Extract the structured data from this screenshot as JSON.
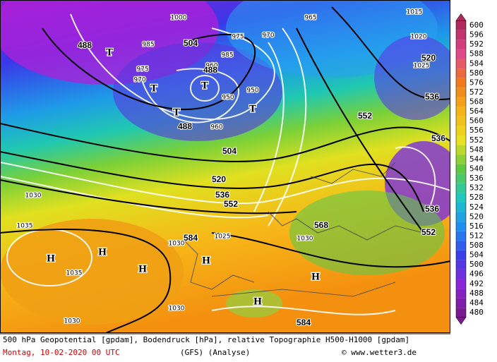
{
  "legend": {
    "values": [
      600,
      596,
      592,
      588,
      584,
      580,
      576,
      572,
      568,
      564,
      560,
      556,
      552,
      548,
      544,
      540,
      536,
      532,
      528,
      524,
      520,
      516,
      512,
      508,
      504,
      500,
      496,
      492,
      488,
      484,
      480
    ]
  },
  "map": {
    "height_labels": [
      "488",
      "504",
      "488",
      "488",
      "504",
      "520",
      "536",
      "552",
      "552",
      "520",
      "536",
      "536",
      "536",
      "552",
      "568",
      "584",
      "584"
    ],
    "pressure_labels": [
      "1000",
      "985",
      "975",
      "970",
      "960",
      "950",
      "950",
      "960",
      "985",
      "975",
      "970",
      "965",
      "1015",
      "1020",
      "1025",
      "1030",
      "1035",
      "1030",
      "1035",
      "1030",
      "1030",
      "1030",
      "1025"
    ],
    "centers": [
      "T",
      "T",
      "T",
      "T",
      "T",
      "H",
      "H",
      "H",
      "H",
      "H",
      "H"
    ]
  },
  "footer": {
    "description": "500 hPa Geopotential [gpdam], Bodendruck [hPa], relative Topographie H500-H1000 [gpdam]",
    "date": "Montag, 10-02-2020  00 UTC",
    "model": "(GFS)  (Analyse)",
    "credit": "© www.wetter3.de"
  }
}
